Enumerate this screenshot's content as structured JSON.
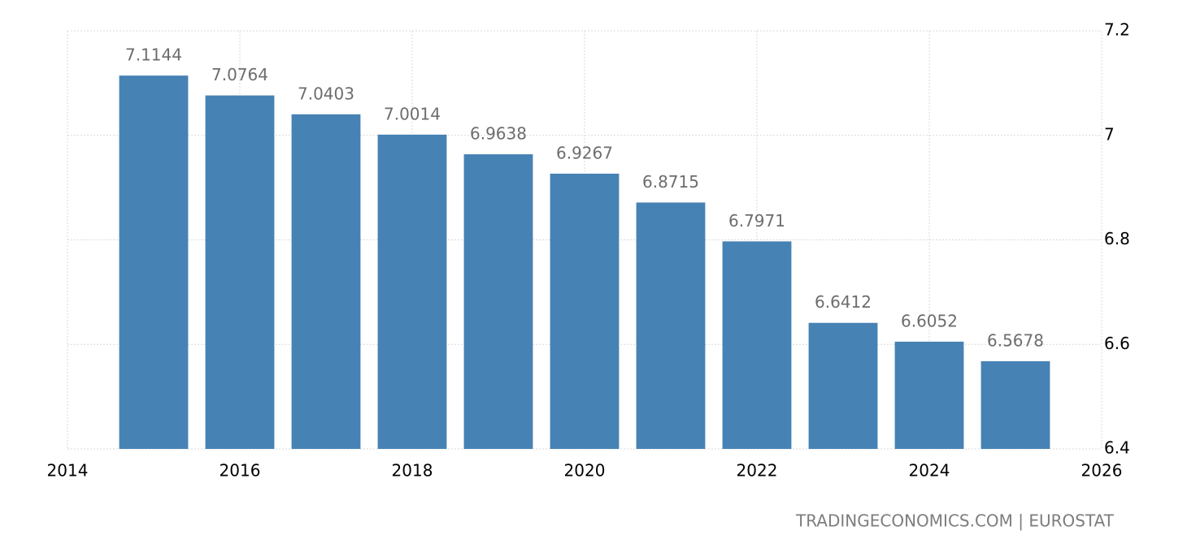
{
  "chart_data": {
    "type": "bar",
    "x": [
      2015,
      2016,
      2017,
      2018,
      2019,
      2020,
      2021,
      2022,
      2023,
      2024,
      2025
    ],
    "values": [
      7.1144,
      7.0764,
      7.0403,
      7.0014,
      6.9638,
      6.9267,
      6.8715,
      6.7971,
      6.6412,
      6.6052,
      6.5678
    ],
    "color": "#4682b4",
    "xlim": [
      2014,
      2026
    ],
    "xticks": [
      2014,
      2016,
      2018,
      2020,
      2022,
      2024,
      2026
    ],
    "ylim": [
      6.4,
      7.2
    ],
    "yticks": [
      6.4,
      6.6,
      6.8,
      7,
      7.2
    ],
    "grid": true,
    "source": "TRADINGECONOMICS.COM | EUROSTAT"
  }
}
